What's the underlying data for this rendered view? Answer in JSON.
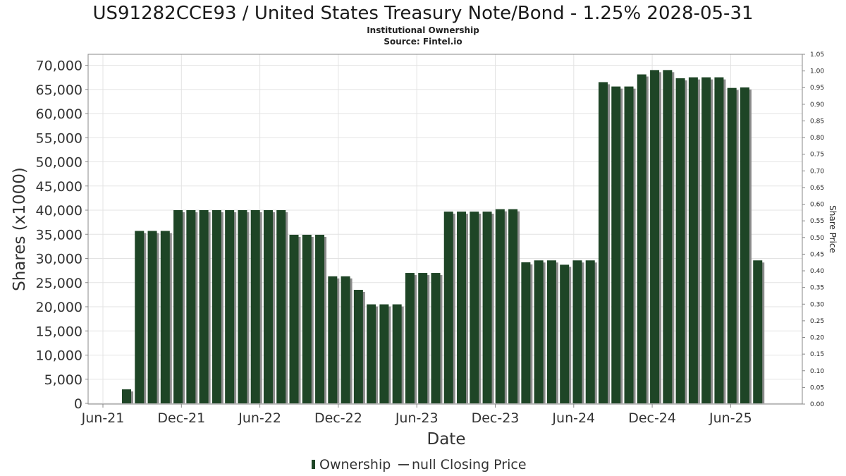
{
  "chart_data": {
    "type": "bar",
    "title": "US91282CCE93 / United States Treasury Note/Bond - 1.25% 2028-05-31",
    "subtitle": "Institutional Ownership",
    "source": "Source: Fintel.io",
    "xlabel": "Date",
    "ylabel": "Shares (x1000)",
    "y2label": "Share Price",
    "ylim": [
      0,
      72000
    ],
    "y2lim": [
      0,
      1.05
    ],
    "yticks": [
      "0",
      "5,000",
      "10,000",
      "15,000",
      "20,000",
      "25,000",
      "30,000",
      "35,000",
      "40,000",
      "45,000",
      "50,000",
      "55,000",
      "60,000",
      "65,000",
      "70,000"
    ],
    "y2ticks": [
      "0.00",
      "0.05",
      "0.10",
      "0.15",
      "0.20",
      "0.25",
      "0.30",
      "0.35",
      "0.40",
      "0.45",
      "0.50",
      "0.55",
      "0.60",
      "0.65",
      "0.70",
      "0.75",
      "0.80",
      "0.85",
      "0.90",
      "0.95",
      "1.00",
      "1.05"
    ],
    "xticks": [
      "Jun-21",
      "Dec-21",
      "Jun-22",
      "Dec-22",
      "Jun-23",
      "Dec-23",
      "Jun-24",
      "Dec-24",
      "Jun-25"
    ],
    "grid": true,
    "bar_color": "#1e4526",
    "shadow_color": "#8c8c8c",
    "series": [
      {
        "name": "Ownership",
        "values": [
          2900,
          35700,
          35700,
          35700,
          40000,
          40000,
          40000,
          40000,
          40000,
          40000,
          40000,
          40000,
          40000,
          34900,
          34900,
          34900,
          26300,
          26300,
          23500,
          20500,
          20500,
          20500,
          27000,
          27000,
          27000,
          39700,
          39700,
          39700,
          39700,
          40200,
          40200,
          29200,
          29600,
          29600,
          28700,
          29600,
          29600,
          66500,
          65600,
          65600,
          68100,
          69000,
          69000,
          67300,
          67500,
          67500,
          67500,
          65300,
          65400,
          29600
        ]
      }
    ],
    "legend": [
      {
        "label": "Ownership",
        "marker": "bar"
      },
      {
        "label": "null Closing Price",
        "marker": "line"
      }
    ],
    "legend_position": "bottom"
  }
}
